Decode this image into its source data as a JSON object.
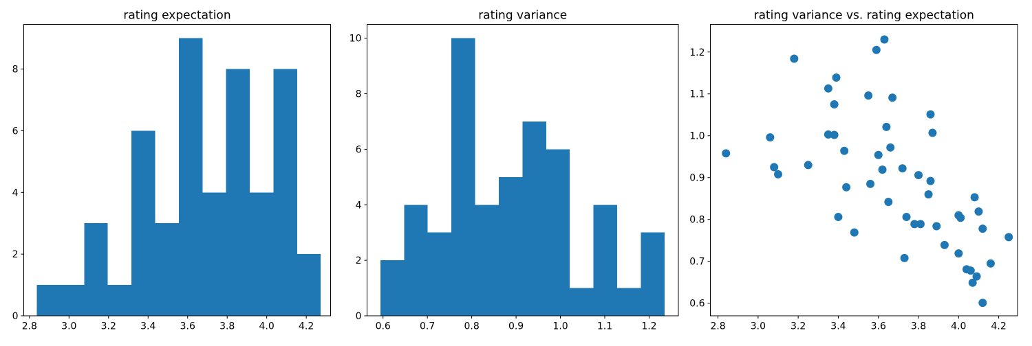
{
  "figure": {
    "background_color": "#ffffff",
    "series_color": "#1f77b4",
    "axis_color": "#000000",
    "text_color": "#000000"
  },
  "chart_data": [
    {
      "type": "bar",
      "subtype": "histogram",
      "title": "rating expectation",
      "xlabel": "",
      "ylabel": "",
      "grid": false,
      "legend": null,
      "xlim": [
        2.771,
        4.323
      ],
      "ylim": [
        0,
        9.45
      ],
      "xtick_labels": [
        "2.8",
        "3.0",
        "3.2",
        "3.4",
        "3.6",
        "3.8",
        "4.0",
        "4.2"
      ],
      "ytick_labels": [
        "0",
        "2",
        "4",
        "6",
        "8"
      ],
      "bin_start": 2.837,
      "bin_width": 0.1197,
      "counts": [
        1,
        1,
        3,
        1,
        6,
        3,
        9,
        4,
        8,
        4,
        8,
        2
      ]
    },
    {
      "type": "bar",
      "subtype": "histogram",
      "title": "rating variance",
      "xlabel": "",
      "ylabel": "",
      "grid": false,
      "legend": null,
      "xlim": [
        0.564,
        1.266
      ],
      "ylim": [
        0,
        10.5
      ],
      "xtick_labels": [
        "0.6",
        "0.7",
        "0.8",
        "0.9",
        "1.0",
        "1.1",
        "1.2"
      ],
      "ytick_labels": [
        "0",
        "2",
        "4",
        "6",
        "8",
        "10"
      ],
      "bin_start": 0.594,
      "bin_width": 0.0534,
      "counts": [
        2,
        4,
        3,
        10,
        4,
        5,
        7,
        6,
        1,
        4,
        1,
        3
      ]
    },
    {
      "type": "scatter",
      "title": "rating variance vs. rating expectation",
      "xlabel": "",
      "ylabel": "",
      "grid": false,
      "legend": null,
      "xlim": [
        2.762,
        4.294
      ],
      "ylim": [
        0.57,
        1.266
      ],
      "xtick_labels": [
        "2.8",
        "3.0",
        "3.2",
        "3.4",
        "3.6",
        "3.8",
        "4.0",
        "4.2"
      ],
      "ytick_labels": [
        "0.6",
        "0.7",
        "0.8",
        "0.9",
        "1.0",
        "1.1",
        "1.2"
      ],
      "points": [
        [
          2.84,
          0.958
        ],
        [
          3.06,
          0.996
        ],
        [
          3.08,
          0.925
        ],
        [
          3.1,
          0.908
        ],
        [
          3.18,
          1.184
        ],
        [
          3.25,
          0.93
        ],
        [
          3.35,
          1.113
        ],
        [
          3.35,
          1.003
        ],
        [
          3.38,
          1.075
        ],
        [
          3.38,
          1.002
        ],
        [
          3.39,
          1.139
        ],
        [
          3.4,
          0.806
        ],
        [
          3.43,
          0.964
        ],
        [
          3.44,
          0.877
        ],
        [
          3.48,
          0.769
        ],
        [
          3.55,
          1.096
        ],
        [
          3.56,
          0.885
        ],
        [
          3.59,
          1.205
        ],
        [
          3.6,
          0.954
        ],
        [
          3.62,
          0.919
        ],
        [
          3.63,
          1.23
        ],
        [
          3.64,
          1.021
        ],
        [
          3.65,
          0.842
        ],
        [
          3.66,
          0.972
        ],
        [
          3.67,
          1.091
        ],
        [
          3.72,
          0.922
        ],
        [
          3.73,
          0.708
        ],
        [
          3.74,
          0.806
        ],
        [
          3.78,
          0.789
        ],
        [
          3.8,
          0.906
        ],
        [
          3.81,
          0.789
        ],
        [
          3.85,
          0.86
        ],
        [
          3.86,
          1.051
        ],
        [
          3.86,
          0.892
        ],
        [
          3.87,
          1.007
        ],
        [
          3.89,
          0.784
        ],
        [
          3.93,
          0.739
        ],
        [
          4.0,
          0.81
        ],
        [
          4.01,
          0.804
        ],
        [
          4.0,
          0.719
        ],
        [
          4.04,
          0.681
        ],
        [
          4.06,
          0.678
        ],
        [
          4.07,
          0.649
        ],
        [
          4.08,
          0.853
        ],
        [
          4.09,
          0.664
        ],
        [
          4.1,
          0.819
        ],
        [
          4.12,
          0.778
        ],
        [
          4.12,
          0.601
        ],
        [
          4.16,
          0.695
        ],
        [
          4.25,
          0.758
        ]
      ]
    }
  ]
}
